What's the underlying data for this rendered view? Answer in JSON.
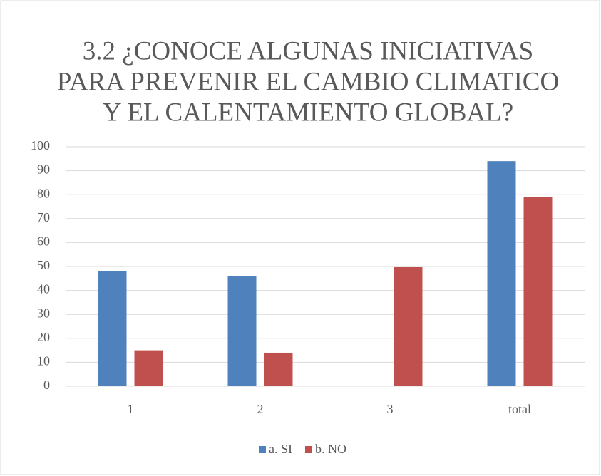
{
  "chart_data": {
    "type": "bar",
    "title": [
      "3.2 ¿CONOCE ALGUNAS INICIATIVAS",
      "PARA PREVENIR EL CAMBIO CLIMATICO",
      "Y EL CALENTAMIENTO GLOBAL?"
    ],
    "categories": [
      "1",
      "2",
      "3",
      "total"
    ],
    "series": [
      {
        "name": "a. SI",
        "color": "#4f81bd",
        "values": [
          48,
          46,
          0,
          94
        ]
      },
      {
        "name": "b. NO",
        "color": "#c0504d",
        "values": [
          15,
          14,
          50,
          79
        ]
      }
    ],
    "ylim": [
      0,
      100
    ],
    "yticks": [
      0,
      10,
      20,
      30,
      40,
      50,
      60,
      70,
      80,
      90,
      100
    ],
    "grid": true,
    "legend": "bottom"
  }
}
